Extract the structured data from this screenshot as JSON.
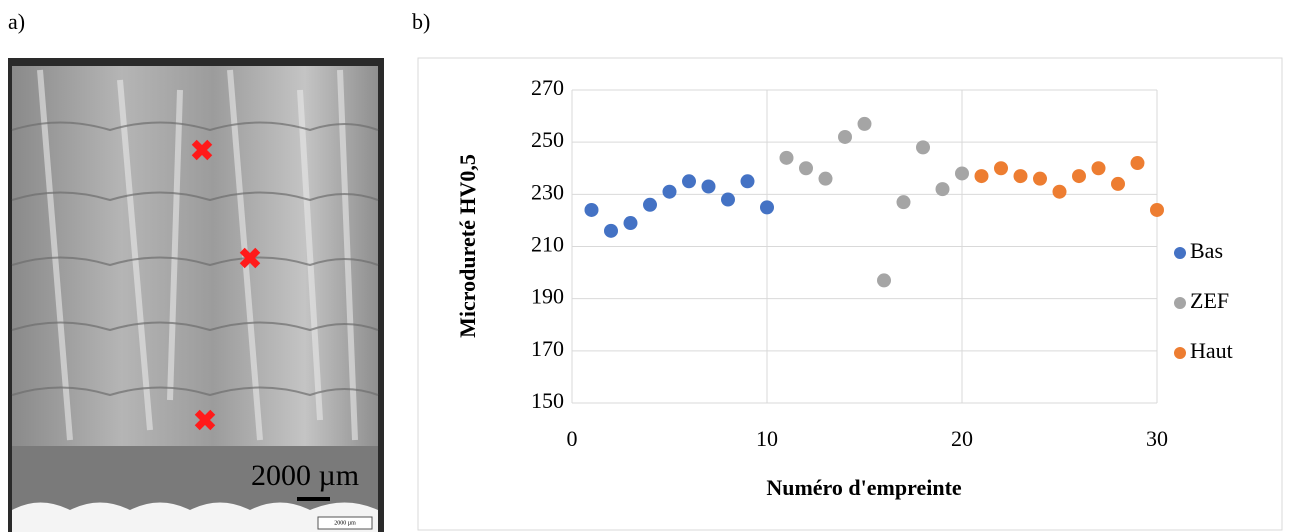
{
  "panel_labels": [
    "a)",
    "b)"
  ],
  "micrograph": {
    "scale_label": "2000 µm",
    "scale_label_small": "2000 µm"
  },
  "chart_data": {
    "type": "scatter",
    "x_label": "Numéro d'empreinte",
    "y_label": "Microdureté HV0,5",
    "xlim": [
      0,
      30
    ],
    "xticks": [
      0,
      10,
      20,
      30
    ],
    "ylim": [
      150,
      270
    ],
    "yticks": [
      150,
      170,
      190,
      210,
      230,
      250,
      270
    ],
    "grid": true,
    "legend": "right",
    "series": [
      {
        "name": "Bas",
        "color": "#4472c4",
        "x": [
          1,
          2,
          3,
          4,
          5,
          6,
          7,
          8,
          9,
          10
        ],
        "values": [
          224,
          216,
          219,
          226,
          231,
          235,
          233,
          228,
          235,
          225
        ]
      },
      {
        "name": "ZEF",
        "color": "#a5a5a5",
        "x": [
          11,
          12,
          13,
          14,
          15,
          16,
          17,
          18,
          19,
          20
        ],
        "values": [
          244,
          240,
          236,
          252,
          257,
          197,
          227,
          248,
          232,
          238
        ]
      },
      {
        "name": "Haut",
        "color": "#ed7d31",
        "x": [
          21,
          22,
          23,
          24,
          25,
          26,
          27,
          28,
          29,
          30
        ],
        "values": [
          237,
          240,
          237,
          236,
          231,
          237,
          240,
          234,
          242,
          224
        ]
      }
    ]
  }
}
